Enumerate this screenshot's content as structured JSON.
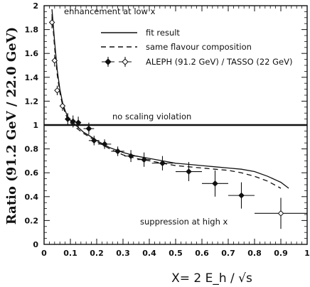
{
  "chart_data": {
    "type": "scatter",
    "title": "",
    "xlabel": "X= 2 E_h / √s",
    "ylabel": "Ratio (91.2 GeV / 22.0 GeV)",
    "xlim": [
      0,
      1
    ],
    "ylim": [
      0,
      2
    ],
    "x_ticks": [
      "0",
      "0.1",
      "0.2",
      "0.3",
      "0.4",
      "0.5",
      "0.6",
      "0.7",
      "0.8",
      "0.9",
      "1"
    ],
    "y_ticks": [
      "0",
      "0.2",
      "0.4",
      "0.6",
      "0.8",
      "1",
      "1.2",
      "1.4",
      "1.6",
      "1.8",
      "2"
    ],
    "grid": false,
    "legend_position": "top",
    "legend": {
      "fit": "fit result",
      "same_flavour": "same flavour composition",
      "data": "ALEPH (91.2 GeV) / TASSO (22 GeV)"
    },
    "annotations": {
      "enhancement": "enhancement at low x",
      "no_scaling": "no scaling violation",
      "suppression": "suppression at high x"
    },
    "reference_line": {
      "y": 1
    },
    "series": [
      {
        "name": "ALEPH (91.2 GeV) / TASSO (22 GeV)",
        "marker": "filled-and-open-diamond",
        "points": [
          {
            "x": 0.03,
            "y": 1.86,
            "xerr": 0.005,
            "yerr": 0.05,
            "open": true
          },
          {
            "x": 0.04,
            "y": 1.54,
            "xerr": 0.005,
            "yerr": 0.05,
            "open": true
          },
          {
            "x": 0.05,
            "y": 1.29,
            "xerr": 0.005,
            "yerr": 0.04,
            "open": true
          },
          {
            "x": 0.07,
            "y": 1.16,
            "xerr": 0.005,
            "yerr": 0.04,
            "open": true
          },
          {
            "x": 0.09,
            "y": 1.05,
            "xerr": 0.01,
            "yerr": 0.05,
            "open": false
          },
          {
            "x": 0.11,
            "y": 1.03,
            "xerr": 0.01,
            "yerr": 0.05,
            "open": false
          },
          {
            "x": 0.13,
            "y": 1.02,
            "xerr": 0.01,
            "yerr": 0.05,
            "open": false
          },
          {
            "x": 0.17,
            "y": 0.97,
            "xerr": 0.02,
            "yerr": 0.05,
            "open": false
          },
          {
            "x": 0.19,
            "y": 0.87,
            "xerr": 0.02,
            "yerr": 0.04,
            "open": false
          },
          {
            "x": 0.23,
            "y": 0.84,
            "xerr": 0.025,
            "yerr": 0.04,
            "open": false
          },
          {
            "x": 0.28,
            "y": 0.78,
            "xerr": 0.025,
            "yerr": 0.04,
            "open": false
          },
          {
            "x": 0.33,
            "y": 0.74,
            "xerr": 0.025,
            "yerr": 0.05,
            "open": false
          },
          {
            "x": 0.38,
            "y": 0.71,
            "xerr": 0.025,
            "yerr": 0.06,
            "open": false
          },
          {
            "x": 0.45,
            "y": 0.68,
            "xerr": 0.04,
            "yerr": 0.06,
            "open": false
          },
          {
            "x": 0.55,
            "y": 0.61,
            "xerr": 0.05,
            "yerr": 0.08,
            "open": false
          },
          {
            "x": 0.65,
            "y": 0.51,
            "xerr": 0.05,
            "yerr": 0.11,
            "open": false
          },
          {
            "x": 0.75,
            "y": 0.41,
            "xerr": 0.05,
            "yerr": 0.11,
            "open": false
          },
          {
            "x": 0.9,
            "y": 0.26,
            "xerr": 0.1,
            "yerr": 0.13,
            "open": true
          }
        ]
      },
      {
        "name": "fit result",
        "style": "solid",
        "x": [
          0.03,
          0.04,
          0.05,
          0.06,
          0.07,
          0.08,
          0.09,
          0.1,
          0.12,
          0.15,
          0.18,
          0.2,
          0.25,
          0.3,
          0.35,
          0.4,
          0.45,
          0.5,
          0.55,
          0.6,
          0.65,
          0.7,
          0.75,
          0.8,
          0.85,
          0.9,
          0.93
        ],
        "y": [
          1.97,
          1.7,
          1.46,
          1.3,
          1.19,
          1.12,
          1.07,
          1.04,
          1.0,
          0.94,
          0.9,
          0.87,
          0.81,
          0.77,
          0.74,
          0.72,
          0.7,
          0.68,
          0.67,
          0.66,
          0.65,
          0.64,
          0.63,
          0.61,
          0.57,
          0.52,
          0.47
        ]
      },
      {
        "name": "same flavour composition",
        "style": "dashed",
        "x": [
          0.03,
          0.04,
          0.05,
          0.06,
          0.07,
          0.08,
          0.09,
          0.1,
          0.12,
          0.15,
          0.18,
          0.2,
          0.25,
          0.3,
          0.35,
          0.4,
          0.45,
          0.5,
          0.55,
          0.6,
          0.65,
          0.7,
          0.75,
          0.8,
          0.85,
          0.9
        ],
        "y": [
          1.93,
          1.65,
          1.42,
          1.27,
          1.17,
          1.1,
          1.05,
          1.02,
          0.98,
          0.93,
          0.89,
          0.86,
          0.8,
          0.75,
          0.72,
          0.7,
          0.68,
          0.66,
          0.65,
          0.64,
          0.63,
          0.62,
          0.6,
          0.57,
          0.53,
          0.47
        ]
      }
    ]
  }
}
